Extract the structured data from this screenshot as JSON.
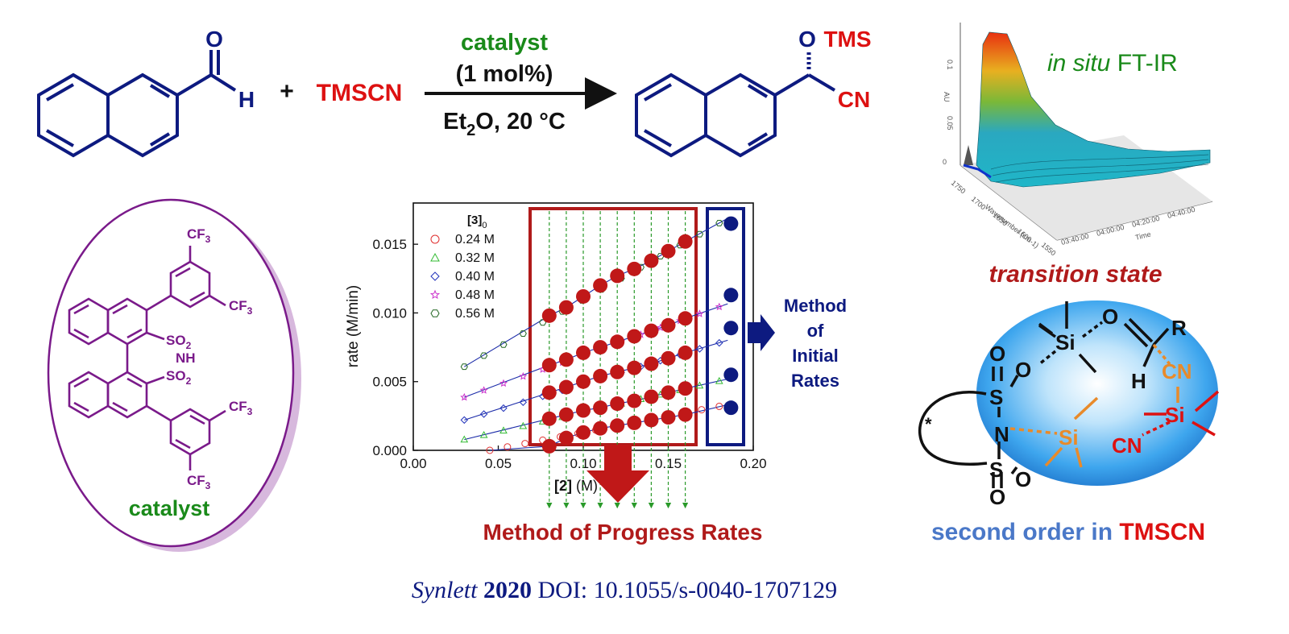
{
  "reaction": {
    "plus": "+",
    "reagent": "TMSCN",
    "catalyst_label": "catalyst",
    "loading": "(1 mol%)",
    "conditions_solvent_prefix": "Et",
    "conditions_solvent_sub": "2",
    "conditions_rest": "O, 20 °C",
    "sm_aldehyde_O": "O",
    "sm_aldehyde_H": "H",
    "product_O": "O",
    "product_TMS": "TMS",
    "product_CN": "CN"
  },
  "catalyst": {
    "label": "catalyst",
    "cf3_top": "CF",
    "cf3_sub": "3",
    "so2_top": "SO",
    "so2_sub": "2",
    "nh": "NH",
    "so2_bottom": "SO"
  },
  "ftir": {
    "title_italic": "in situ",
    "title_plain": "FT-IR",
    "axis_wavenumber": "Wavenumber (cm-1)",
    "axis_time": "Time",
    "axis_au": "AU",
    "wn_ticks": [
      "1750",
      "1700",
      "1650",
      "1600",
      "1550"
    ],
    "time_ticks": [
      "03:40:00",
      "04:00:00",
      "04:20:00",
      "04:40:00"
    ],
    "au_ticks": [
      "0",
      "0.05",
      "0.1"
    ]
  },
  "chart_data": {
    "type": "scatter",
    "xlabel_bold": "2",
    "xlabel_unit": "(M)",
    "ylabel": "rate (M/min)",
    "xlim": [
      0.0,
      0.2
    ],
    "ylim": [
      0.0,
      0.018
    ],
    "x_ticks": [
      "0.00",
      "0.05",
      "0.10",
      "0.15",
      "0.20"
    ],
    "y_ticks": [
      "0.000",
      "0.005",
      "0.010",
      "0.015"
    ],
    "legend_title": "3",
    "legend_title_sub": "0",
    "series": [
      {
        "name": "0.24 M",
        "color": "#e03030",
        "marker": "circle",
        "x": [
          0.08,
          0.09,
          0.1,
          0.11,
          0.12,
          0.13,
          0.14,
          0.15,
          0.16
        ],
        "y": [
          0.0003,
          0.0009,
          0.0013,
          0.0016,
          0.0018,
          0.002,
          0.0022,
          0.0024,
          0.0026
        ]
      },
      {
        "name": "0.32 M",
        "color": "#33bb33",
        "marker": "triangle",
        "x": [
          0.08,
          0.09,
          0.1,
          0.11,
          0.12,
          0.13,
          0.14,
          0.15,
          0.16
        ],
        "y": [
          0.0023,
          0.0026,
          0.0029,
          0.0031,
          0.0034,
          0.0036,
          0.0039,
          0.0042,
          0.0045
        ]
      },
      {
        "name": "0.40 M",
        "color": "#2233bb",
        "marker": "diamond",
        "x": [
          0.08,
          0.09,
          0.1,
          0.11,
          0.12,
          0.13,
          0.14,
          0.15,
          0.16
        ],
        "y": [
          0.0042,
          0.0046,
          0.005,
          0.0054,
          0.0057,
          0.006,
          0.0063,
          0.0067,
          0.0071
        ]
      },
      {
        "name": "0.48 M",
        "color": "#cc33cc",
        "marker": "star",
        "x": [
          0.08,
          0.09,
          0.1,
          0.11,
          0.12,
          0.13,
          0.14,
          0.15,
          0.16
        ],
        "y": [
          0.0062,
          0.0066,
          0.0071,
          0.0075,
          0.0079,
          0.0083,
          0.0087,
          0.0091,
          0.0096
        ]
      },
      {
        "name": "0.56 M",
        "color": "#226622",
        "marker": "hexagon",
        "x": [
          0.08,
          0.09,
          0.1,
          0.11,
          0.12,
          0.13,
          0.14,
          0.15,
          0.16
        ],
        "y": [
          0.0098,
          0.0104,
          0.0112,
          0.012,
          0.0127,
          0.0132,
          0.0138,
          0.0145,
          0.0152
        ]
      }
    ],
    "initial_rates": [
      0.0165,
      0.0113,
      0.0089,
      0.0055,
      0.0031
    ],
    "initial_x": 0.185,
    "grid": false,
    "legend_position": "top-left"
  },
  "methods": {
    "initial": [
      "Method",
      "of",
      "Initial",
      "Rates"
    ],
    "progress": "Method of Progress Rates"
  },
  "transition_state": {
    "title": "transition state",
    "O": "O",
    "R": "R",
    "Si": "Si",
    "CN": "CN",
    "H": "H",
    "S": "S",
    "N": "N",
    "star": "*"
  },
  "order": {
    "prefix": "second order in ",
    "reagent": "TMSCN"
  },
  "citation": {
    "journal": "Synlett",
    "year": "2020",
    "doi": " DOI: 10.1055/s-0040-1707129"
  },
  "colors": {
    "navy": "#0d1a80",
    "red": "#dd1111",
    "darkred": "#b01a1a",
    "green": "#1a8a1a",
    "purple": "#7a1a8a",
    "blue_text": "#4a78c8"
  }
}
